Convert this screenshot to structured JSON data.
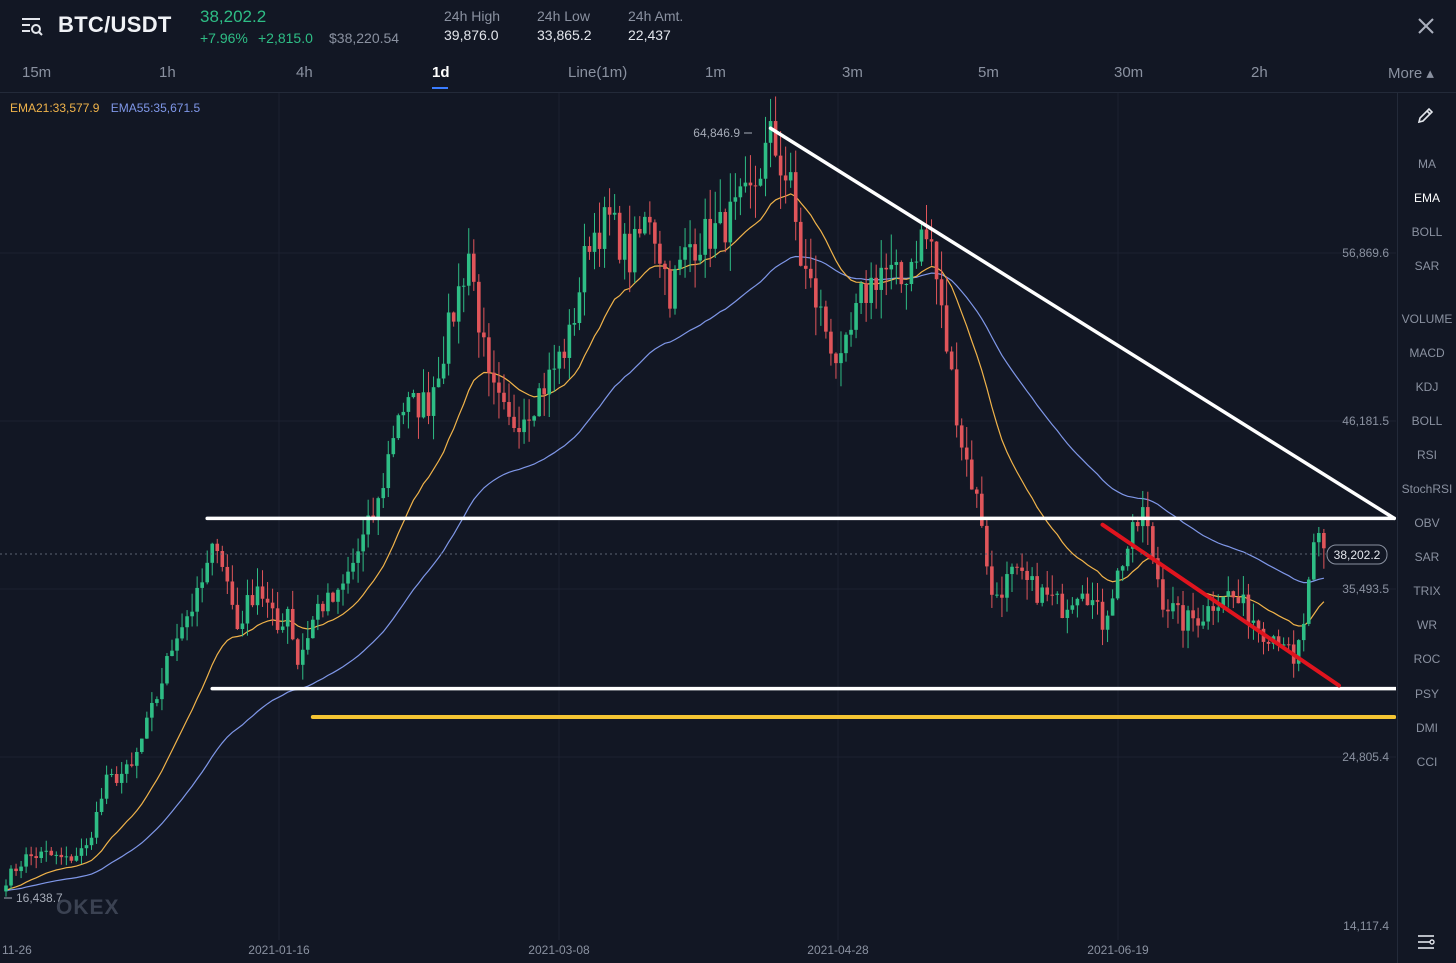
{
  "header": {
    "pair": "BTC/USDT",
    "last_price": "38,202.2",
    "change_pct": "+7.96%",
    "change_abs": "+2,815.0",
    "usd_price": "$38,220.54",
    "stats": [
      {
        "label": "24h High",
        "value": "39,876.0"
      },
      {
        "label": "24h Low",
        "value": "33,865.2"
      },
      {
        "label": "24h Amt.",
        "value": "22,437"
      }
    ],
    "menu_icon": "menu-search-icon",
    "close_icon": "close-icon"
  },
  "tabs": [
    "15m",
    "1h",
    "4h",
    "1d",
    "Line(1m)",
    "1m",
    "3m",
    "5m",
    "30m",
    "2h",
    "More ▴"
  ],
  "active_tab": "1d",
  "legend": {
    "ema21": "EMA21:33,577.9",
    "ema55": "EMA55:35,671.5"
  },
  "watermark": "OKEX",
  "toolbar": {
    "pencil_icon": "pencil-icon",
    "settings_icon": "settings-list-icon",
    "indicators": [
      "MA",
      "EMA",
      "BOLL",
      "SAR",
      "VOLUME",
      "MACD",
      "KDJ",
      "BOLL",
      "RSI",
      "StochRSI",
      "OBV",
      "SAR",
      "TRIX",
      "WR",
      "ROC",
      "PSY",
      "DMI",
      "CCI"
    ],
    "active_indicator": "EMA"
  },
  "colors": {
    "background": "#121724",
    "up": "#2ebd85",
    "down": "#e0555a",
    "ema21": "#f0b34a",
    "ema55": "#7f97e8",
    "trend_white": "#ffffff",
    "trend_red": "#e0141e",
    "support_yellow": "#f5c533"
  },
  "chart_data": {
    "type": "candlestick",
    "price_axis_labels": [
      "56,869.6",
      "46,181.5",
      "35,493.5",
      "24,805.4",
      "14,117.4"
    ],
    "date_axis_labels": [
      "11-26",
      "2021-01-16",
      "2021-03-08",
      "2021-04-28",
      "2021-06-19"
    ],
    "ylim": [
      14117.4,
      66000
    ],
    "price_tag": "38,202.2",
    "max_label": "64,846.9",
    "min_label": "16,438.7",
    "ema21_value": 33577.9,
    "ema55_value": 35671.5,
    "anchors": [
      [
        0,
        17200
      ],
      [
        4,
        18600
      ],
      [
        8,
        18800
      ],
      [
        12,
        18400
      ],
      [
        16,
        19200
      ],
      [
        20,
        23400
      ],
      [
        25,
        24200
      ],
      [
        30,
        28800
      ],
      [
        34,
        33000
      ],
      [
        38,
        35000
      ],
      [
        42,
        38800
      ],
      [
        46,
        33200
      ],
      [
        50,
        36000
      ],
      [
        54,
        33000
      ],
      [
        56,
        34500
      ],
      [
        58,
        31000
      ],
      [
        62,
        34500
      ],
      [
        66,
        35000
      ],
      [
        70,
        38000
      ],
      [
        74,
        41000
      ],
      [
        78,
        47000
      ],
      [
        84,
        47500
      ],
      [
        88,
        52000
      ],
      [
        92,
        57000
      ],
      [
        96,
        48500
      ],
      [
        100,
        46000
      ],
      [
        104,
        47200
      ],
      [
        108,
        49000
      ],
      [
        112,
        51500
      ],
      [
        116,
        58000
      ],
      [
        120,
        59000
      ],
      [
        124,
        56500
      ],
      [
        128,
        59500
      ],
      [
        132,
        54500
      ],
      [
        136,
        57500
      ],
      [
        142,
        58500
      ],
      [
        148,
        60500
      ],
      [
        152,
        64200
      ],
      [
        156,
        61000
      ],
      [
        158,
        56500
      ],
      [
        162,
        53000
      ],
      [
        166,
        49500
      ],
      [
        170,
        54000
      ],
      [
        174,
        56000
      ],
      [
        178,
        55000
      ],
      [
        182,
        58000
      ],
      [
        184,
        57500
      ],
      [
        186,
        53000
      ],
      [
        190,
        45000
      ],
      [
        194,
        40000
      ],
      [
        196,
        35000
      ],
      [
        200,
        36500
      ],
      [
        205,
        35500
      ],
      [
        210,
        34500
      ],
      [
        214,
        36000
      ],
      [
        218,
        33500
      ],
      [
        222,
        37500
      ],
      [
        226,
        40500
      ],
      [
        230,
        35000
      ],
      [
        234,
        33500
      ],
      [
        238,
        34000
      ],
      [
        242,
        35500
      ],
      [
        246,
        34500
      ],
      [
        250,
        33000
      ],
      [
        254,
        32500
      ],
      [
        256,
        30500
      ],
      [
        258,
        33500
      ],
      [
        260,
        37800
      ],
      [
        262,
        39500
      ]
    ],
    "trendlines": [
      {
        "color": "white",
        "from": [
          152,
          64846.9
        ],
        "to": [
          276,
          40100
        ]
      },
      {
        "color": "white",
        "from": [
          40,
          40100
        ],
        "to": [
          276,
          40100
        ]
      },
      {
        "color": "white",
        "from": [
          41,
          29300
        ],
        "to": [
          278,
          29300
        ]
      },
      {
        "color": "yellow",
        "from": [
          61,
          27500
        ],
        "to": [
          276,
          27500
        ]
      },
      {
        "color": "red",
        "from": [
          218,
          39700
        ],
        "to": [
          265,
          29500
        ]
      }
    ]
  }
}
